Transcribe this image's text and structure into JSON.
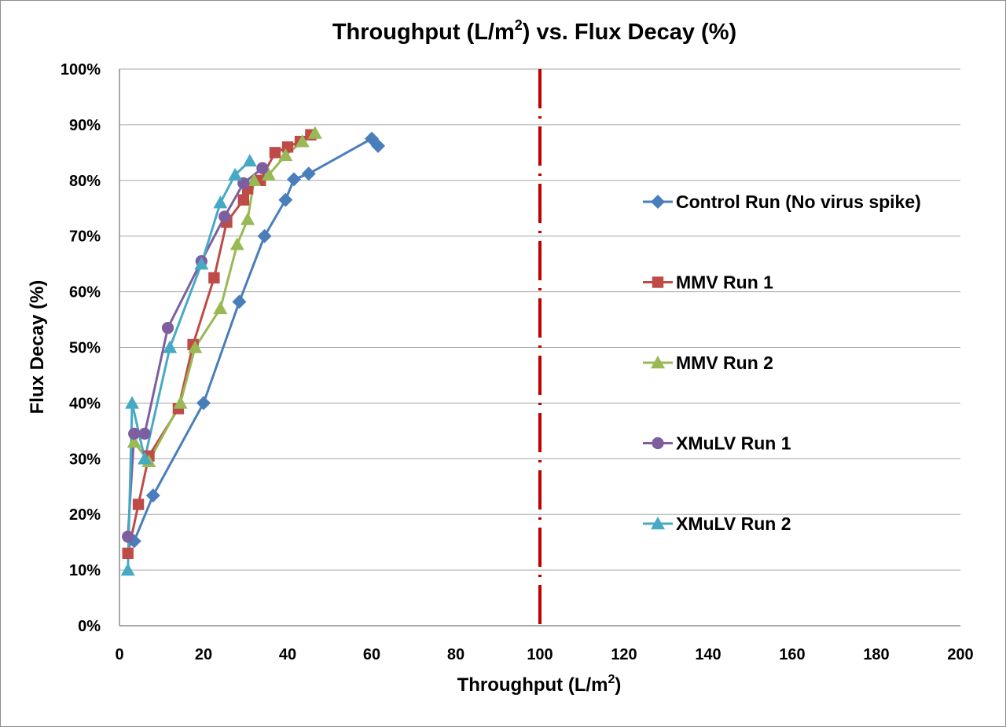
{
  "chart_data": {
    "type": "scatter",
    "title_main": "Throughput (L/m",
    "title_sup": "2",
    "title_rest": ") vs. Flux Decay (%)",
    "xlabel_main": "Throughput (L/m",
    "xlabel_sup": "2",
    "xlabel_rest": ")",
    "ylabel": "Flux Decay (%)",
    "xlim": [
      0,
      200
    ],
    "ylim": [
      0,
      100
    ],
    "x_ticks": [
      "0",
      "20",
      "40",
      "60",
      "80",
      "100",
      "120",
      "140",
      "160",
      "180",
      "200"
    ],
    "y_ticks": [
      "0%",
      "10%",
      "20%",
      "30%",
      "40%",
      "50%",
      "60%",
      "70%",
      "80%",
      "90%",
      "100%"
    ],
    "grid": "horizontal",
    "legend_position": "right",
    "reference_line": {
      "x": 100,
      "style": "dash-dot",
      "color": "#c00000"
    },
    "series": [
      {
        "name": "Control Run (No virus spike)",
        "color": "#4a7ebb",
        "marker": "diamond",
        "points": [
          [
            3.5,
            15.2
          ],
          [
            8,
            23.4
          ],
          [
            20,
            40
          ],
          [
            28.5,
            58.2
          ],
          [
            34.5,
            70
          ],
          [
            39.5,
            76.5
          ],
          [
            41.5,
            80.2
          ],
          [
            45,
            81.2
          ],
          [
            60,
            87.5
          ],
          [
            61.5,
            86.2
          ]
        ]
      },
      {
        "name": "MMV Run 1",
        "color": "#be4b48",
        "marker": "square",
        "points": [
          [
            2,
            13
          ],
          [
            4.5,
            21.8
          ],
          [
            7,
            30.5
          ],
          [
            14,
            39
          ],
          [
            17.5,
            50.5
          ],
          [
            22.5,
            62.5
          ],
          [
            25.5,
            72.5
          ],
          [
            29.5,
            76.5
          ],
          [
            30.5,
            78.5
          ],
          [
            33.5,
            80
          ],
          [
            37,
            85
          ],
          [
            40,
            86
          ],
          [
            43,
            87
          ],
          [
            45.5,
            88.2
          ]
        ]
      },
      {
        "name": "MMV Run 2",
        "color": "#98b954",
        "marker": "triangle",
        "points": [
          [
            3.5,
            33
          ],
          [
            7,
            29.5
          ],
          [
            14.5,
            40
          ],
          [
            18,
            50
          ],
          [
            24,
            57
          ],
          [
            28,
            68.5
          ],
          [
            30.5,
            73
          ],
          [
            32,
            80
          ],
          [
            35.5,
            81
          ],
          [
            39.5,
            84.5
          ],
          [
            43.5,
            87
          ],
          [
            46.5,
            88.5
          ]
        ]
      },
      {
        "name": "XMuLV Run 1",
        "color": "#7d5fa0",
        "marker": "circle",
        "points": [
          [
            2,
            16
          ],
          [
            3.5,
            34.5
          ],
          [
            6,
            34.5
          ],
          [
            11.5,
            53.5
          ],
          [
            19.5,
            65.5
          ],
          [
            25,
            73.5
          ],
          [
            29.5,
            79.5
          ],
          [
            34,
            82.2
          ]
        ]
      },
      {
        "name": "XMuLV Run 2",
        "color": "#46aac5",
        "marker": "triangle",
        "points": [
          [
            2,
            10
          ],
          [
            3,
            40
          ],
          [
            6,
            30
          ],
          [
            12,
            50
          ],
          [
            19.5,
            65
          ],
          [
            24,
            76
          ],
          [
            27.5,
            81
          ],
          [
            31,
            83.5
          ]
        ]
      }
    ]
  }
}
